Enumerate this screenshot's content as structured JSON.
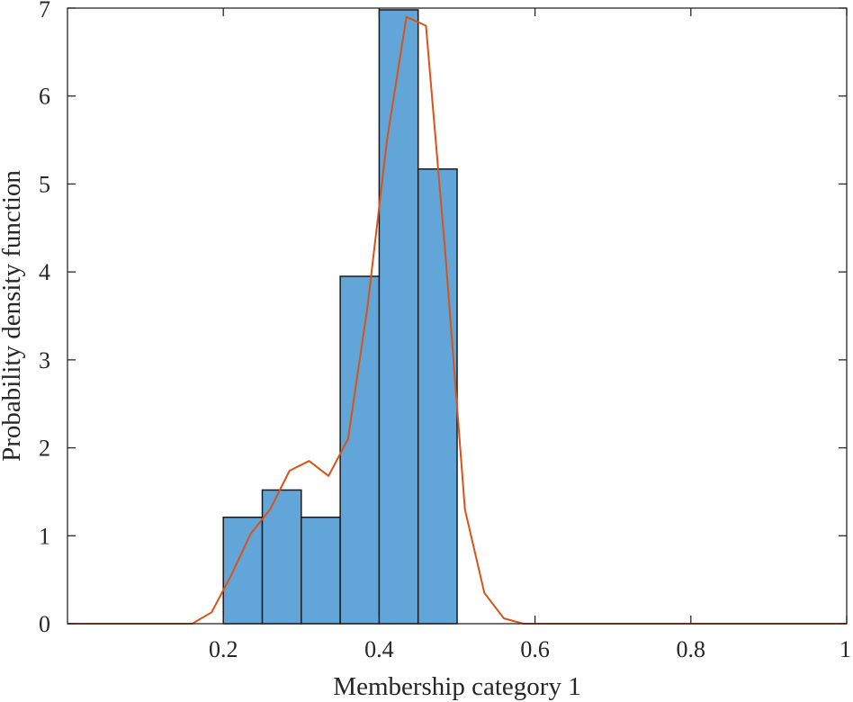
{
  "chart_data": {
    "type": "bar",
    "title": "",
    "xlabel": "Membership category 1",
    "ylabel": "Probability density function",
    "xlim": [
      0,
      1
    ],
    "ylim": [
      0,
      7
    ],
    "xticks": [
      0.2,
      0.4,
      0.6,
      0.8,
      1
    ],
    "xtick_labels": [
      "0.2",
      "0.4",
      "0.6",
      "0.8",
      "1"
    ],
    "yticks": [
      0,
      1,
      2,
      3,
      4,
      5,
      6,
      7
    ],
    "ytick_labels": [
      "0",
      "1",
      "2",
      "3",
      "4",
      "5",
      "6",
      "7"
    ],
    "grid": false,
    "legend": "none",
    "series": [
      {
        "type": "histogram",
        "bins": [
          {
            "x0": 0.2,
            "x1": 0.25,
            "value": 1.21
          },
          {
            "x0": 0.25,
            "x1": 0.3,
            "value": 1.52
          },
          {
            "x0": 0.3,
            "x1": 0.35,
            "value": 1.21
          },
          {
            "x0": 0.35,
            "x1": 0.4,
            "value": 3.95
          },
          {
            "x0": 0.4,
            "x1": 0.45,
            "value": 6.98
          },
          {
            "x0": 0.45,
            "x1": 0.5,
            "value": 5.17
          }
        ],
        "color": "#62a6d9",
        "edge_color": "#1a1a1a"
      },
      {
        "type": "line",
        "x": [
          0.0,
          0.16,
          0.185,
          0.21,
          0.235,
          0.26,
          0.285,
          0.31,
          0.335,
          0.36,
          0.385,
          0.41,
          0.435,
          0.46,
          0.485,
          0.51,
          0.535,
          0.56,
          0.585,
          0.61,
          1.0
        ],
        "y": [
          0,
          0,
          0.13,
          0.55,
          1.02,
          1.3,
          1.74,
          1.85,
          1.68,
          2.1,
          3.6,
          5.5,
          6.9,
          6.8,
          4.2,
          1.3,
          0.35,
          0.06,
          0,
          0,
          0
        ],
        "color": "#d95319"
      }
    ]
  }
}
